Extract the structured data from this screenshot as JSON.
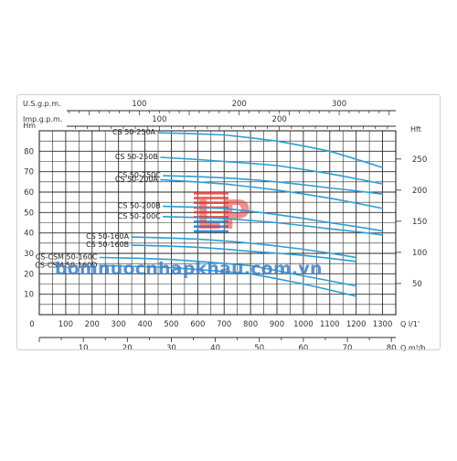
{
  "chart_data": {
    "type": "line",
    "top_axes": [
      {
        "label": "U.S.g.p.m.",
        "ticks": [
          100,
          200,
          300
        ],
        "unit_per_m3h": 4.403
      },
      {
        "label": "Imp.g.p.m.",
        "ticks": [
          100,
          200
        ],
        "unit_per_m3h": 3.666
      }
    ],
    "x_main": {
      "unit": "Q l/1'",
      "ticks": [
        0,
        100,
        200,
        300,
        400,
        500,
        600,
        700,
        800,
        900,
        1000,
        1100,
        1200,
        1300
      ],
      "xlim": [
        0,
        1350
      ]
    },
    "x_secondary": {
      "unit": "Q m³/h",
      "ticks": [
        10,
        20,
        30,
        40,
        50,
        60,
        70,
        80
      ]
    },
    "y_left": {
      "unit": "Hm",
      "ticks": [
        10,
        20,
        30,
        40,
        50,
        60,
        70,
        80
      ],
      "ylim": [
        0,
        90
      ]
    },
    "y_right": {
      "unit": "Hft",
      "ticks": [
        50,
        100,
        150,
        200,
        250
      ],
      "ft_per_m": 3.281
    },
    "grid": true,
    "series": [
      {
        "name": "CS 50-250A",
        "x": [
          450,
          700,
          900,
          1100,
          1300
        ],
        "y": [
          89,
          88,
          85,
          80,
          72
        ]
      },
      {
        "name": "CS 50-250B",
        "x": [
          460,
          700,
          900,
          1100,
          1300
        ],
        "y": [
          77,
          75,
          73,
          69,
          64
        ]
      },
      {
        "name": "CS 50-250C",
        "x": [
          470,
          700,
          900,
          1100,
          1300
        ],
        "y": [
          68,
          67,
          65,
          62,
          59
        ]
      },
      {
        "name": "CS 50-200A",
        "x": [
          460,
          700,
          900,
          1100,
          1300
        ],
        "y": [
          66,
          64,
          61,
          57,
          52
        ]
      },
      {
        "name": "CS 50-200B",
        "x": [
          470,
          700,
          900,
          1100,
          1300
        ],
        "y": [
          53,
          52,
          49,
          45,
          41
        ]
      },
      {
        "name": "CS 50-200C",
        "x": [
          470,
          700,
          900,
          1100,
          1300
        ],
        "y": [
          48,
          47,
          45,
          42,
          39
        ]
      },
      {
        "name": "CS 50-160A",
        "x": [
          350,
          600,
          800,
          1000,
          1200
        ],
        "y": [
          38,
          37,
          35,
          32,
          28
        ]
      },
      {
        "name": "CS 50-160B",
        "x": [
          350,
          600,
          800,
          1000,
          1200
        ],
        "y": [
          34,
          33,
          31,
          29,
          26
        ]
      },
      {
        "name": "CS-CSM 50-160C",
        "x": [
          230,
          500,
          800,
          1000,
          1200
        ],
        "y": [
          28,
          27,
          24,
          19,
          14
        ]
      },
      {
        "name": "CS-CSM 50-160D",
        "x": [
          230,
          500,
          800,
          1000,
          1200
        ],
        "y": [
          24,
          23,
          20,
          15,
          9
        ]
      }
    ]
  },
  "colors": {
    "curve": "#2b9fd6",
    "grid": "#2b2b2b",
    "watermark": "#3f7fc7",
    "logo_red": "#e53935",
    "logo_blue": "#1e78c8"
  },
  "watermark": {
    "text": "bomnuocnhapkhau.com.vn"
  },
  "logo": {
    "letters": "LP"
  }
}
